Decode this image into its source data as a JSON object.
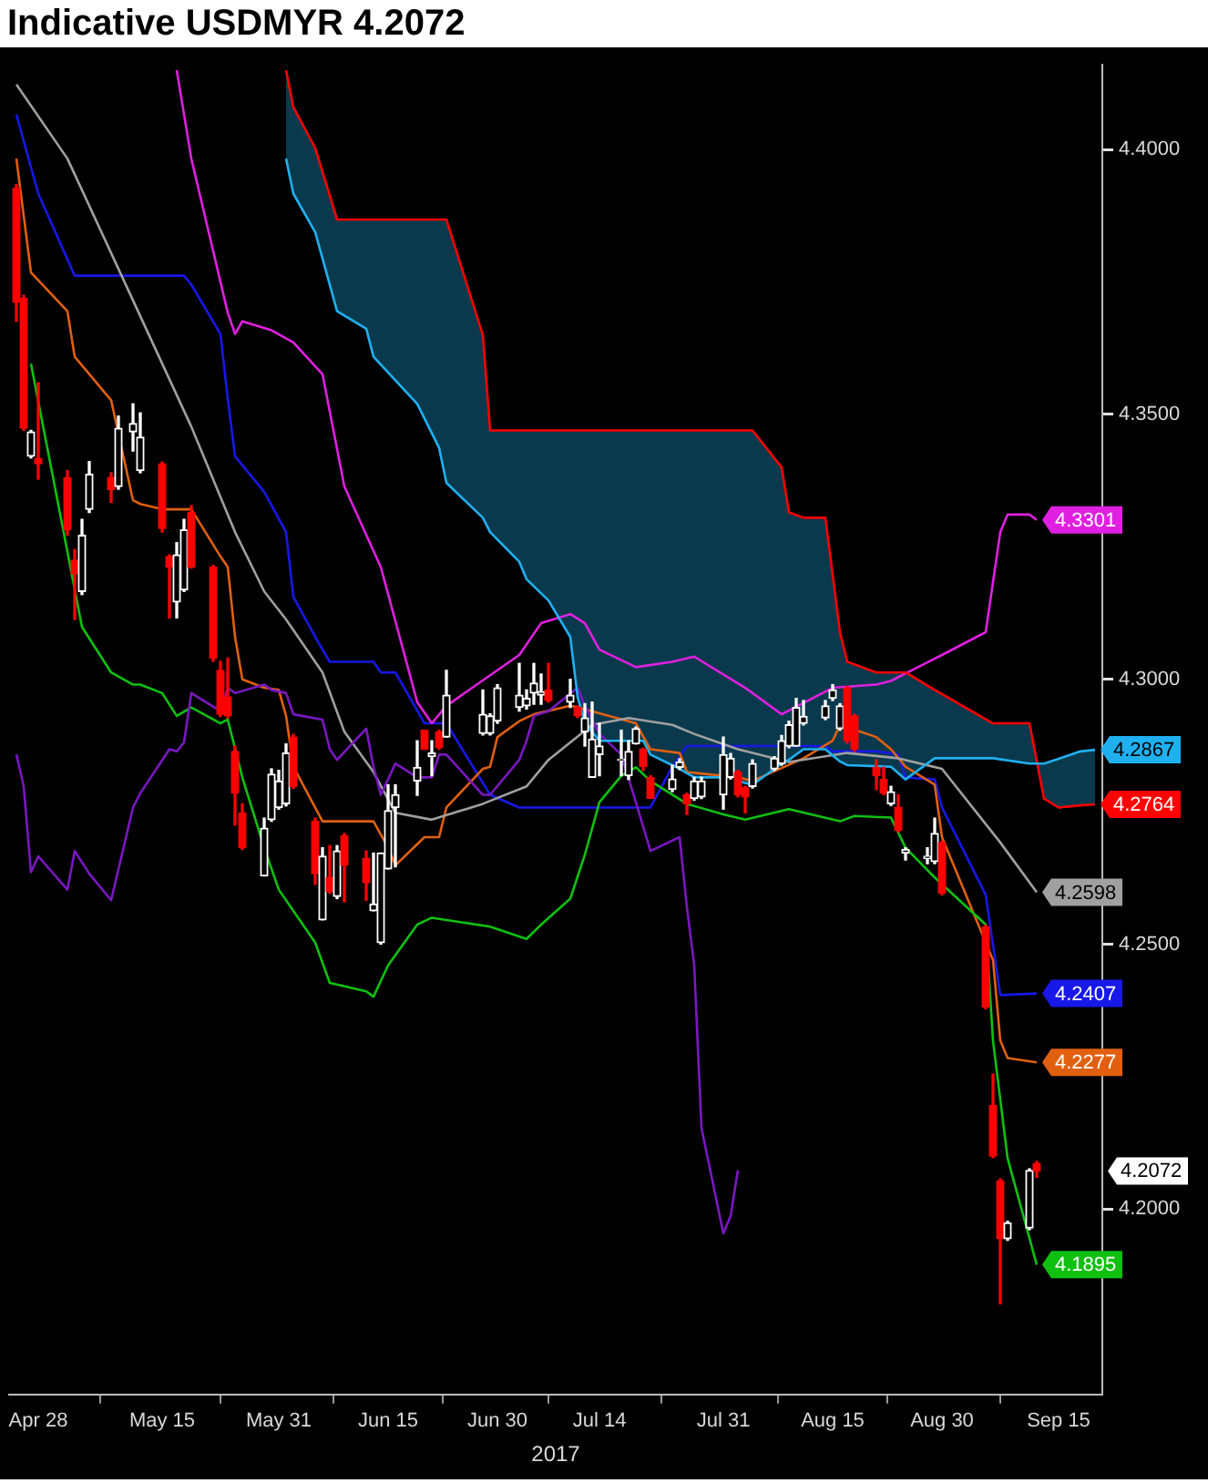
{
  "chart_data": {
    "type": "candlestick",
    "title": "Indicative USDMYR 4.2072",
    "xlabel": "2017",
    "x": [
      "2017-04-25",
      "2017-04-26",
      "2017-04-27",
      "2017-04-28",
      "2017-05-02",
      "2017-05-03",
      "2017-05-04",
      "2017-05-05",
      "2017-05-08",
      "2017-05-09",
      "2017-05-11",
      "2017-05-12",
      "2017-05-15",
      "2017-05-16",
      "2017-05-17",
      "2017-05-18",
      "2017-05-19",
      "2017-05-22",
      "2017-05-23",
      "2017-05-24",
      "2017-05-25",
      "2017-05-26",
      "2017-05-29",
      "2017-05-30",
      "2017-05-31",
      "2017-06-01",
      "2017-06-02",
      "2017-06-05",
      "2017-06-06",
      "2017-06-07",
      "2017-06-08",
      "2017-06-09",
      "2017-06-12",
      "2017-06-13",
      "2017-06-14",
      "2017-06-15",
      "2017-06-16",
      "2017-06-19",
      "2017-06-20",
      "2017-06-21",
      "2017-06-22",
      "2017-06-23",
      "2017-06-28",
      "2017-06-29",
      "2017-06-30",
      "2017-07-03",
      "2017-07-04",
      "2017-07-05",
      "2017-07-06",
      "2017-07-07",
      "2017-07-10",
      "2017-07-11",
      "2017-07-12",
      "2017-07-13",
      "2017-07-14",
      "2017-07-17",
      "2017-07-18",
      "2017-07-19",
      "2017-07-20",
      "2017-07-21",
      "2017-07-24",
      "2017-07-25",
      "2017-07-26",
      "2017-07-27",
      "2017-07-28",
      "2017-07-31",
      "2017-08-01",
      "2017-08-02",
      "2017-08-03",
      "2017-08-04",
      "2017-08-07",
      "2017-08-08",
      "2017-08-09",
      "2017-08-10",
      "2017-08-11",
      "2017-08-14",
      "2017-08-15",
      "2017-08-16",
      "2017-08-17",
      "2017-08-18",
      "2017-08-21",
      "2017-08-22",
      "2017-08-23",
      "2017-08-24",
      "2017-08-25",
      "2017-08-28",
      "2017-08-29",
      "2017-08-30",
      "2017-09-05",
      "2017-09-06",
      "2017-09-07",
      "2017-09-08",
      "2017-09-11",
      "2017-09-12"
    ],
    "ohlc": [
      [
        4.3927,
        4.3934,
        4.3676,
        4.3712
      ],
      [
        4.3719,
        4.3725,
        4.347,
        4.3474
      ],
      [
        4.3421,
        4.347,
        4.3418,
        4.3467
      ],
      [
        4.3417,
        4.356,
        4.3378,
        4.3407
      ],
      [
        4.3381,
        4.3394,
        4.3272,
        4.3282
      ],
      [
        4.3225,
        4.3245,
        4.3113,
        4.3199
      ],
      [
        4.3166,
        4.3302,
        4.316,
        4.3272
      ],
      [
        4.3321,
        4.3411,
        4.3315,
        4.3387
      ],
      [
        4.3381,
        4.339,
        4.3334,
        4.3358
      ],
      [
        4.3364,
        4.3497,
        4.3359,
        4.3474
      ],
      [
        4.3467,
        4.352,
        4.3431,
        4.3483
      ],
      [
        4.3394,
        4.3503,
        4.339,
        4.3457
      ],
      [
        4.3407,
        4.341,
        4.3278,
        4.3285
      ],
      [
        4.3232,
        4.3235,
        4.3116,
        4.3212
      ],
      [
        4.3146,
        4.3258,
        4.3116,
        4.3235
      ],
      [
        4.3169,
        4.3302,
        4.3166,
        4.3282
      ],
      [
        4.3315,
        4.3328,
        4.321,
        4.3212
      ],
      [
        4.3212,
        4.3215,
        4.3034,
        4.304
      ],
      [
        4.3017,
        4.3034,
        4.293,
        4.2934
      ],
      [
        4.2967,
        4.304,
        4.2927,
        4.2931
      ],
      [
        4.2864,
        4.2874,
        4.2725,
        4.2785
      ],
      [
        4.2748,
        4.2765,
        4.2679,
        4.2682
      ],
      [
        4.2629,
        4.2738,
        4.2629,
        4.2719
      ],
      [
        4.2735,
        4.2831,
        4.2732,
        4.2821
      ],
      [
        4.2758,
        4.2828,
        4.2755,
        4.2808
      ],
      [
        4.2765,
        4.2878,
        4.2761,
        4.2861
      ],
      [
        4.2891,
        4.2896,
        4.2794,
        4.2798
      ],
      [
        4.2732,
        4.2738,
        4.2613,
        4.2633
      ],
      [
        4.2546,
        4.2682,
        4.2546,
        4.2666
      ],
      [
        4.2626,
        4.2686,
        4.2596,
        4.2599
      ],
      [
        4.259,
        4.2686,
        4.2586,
        4.2676
      ],
      [
        4.2705,
        4.2709,
        4.258,
        4.2649
      ],
      [
        4.2662,
        4.2676,
        4.2583,
        4.2616
      ],
      [
        4.2563,
        4.2672,
        4.2563,
        4.2576
      ],
      [
        4.2503,
        4.2672,
        4.25,
        4.2672
      ],
      [
        4.2642,
        4.2801,
        4.2642,
        4.2752
      ],
      [
        4.2758,
        4.2801,
        4.2646,
        4.2782
      ],
      [
        4.2808,
        4.2884,
        4.2781,
        4.2834
      ],
      [
        4.2904,
        4.2904,
        4.2868,
        4.2868
      ],
      [
        4.2854,
        4.2884,
        4.2818,
        4.2861
      ],
      [
        4.2901,
        4.2904,
        4.2868,
        4.2871
      ],
      [
        4.2891,
        4.3017,
        4.2891,
        4.297
      ],
      [
        4.2898,
        4.298,
        4.2895,
        4.2934
      ],
      [
        4.2898,
        4.2935,
        4.2895,
        4.2931
      ],
      [
        4.2921,
        4.299,
        4.2917,
        4.2984
      ],
      [
        4.2947,
        4.303,
        4.294,
        4.297
      ],
      [
        4.295,
        4.298,
        4.2944,
        4.2964
      ],
      [
        4.2974,
        4.303,
        4.2953,
        4.2993
      ],
      [
        4.297,
        4.301,
        4.2953,
        4.2977
      ],
      [
        4.298,
        4.303,
        4.2957,
        4.296
      ],
      [
        4.2957,
        4.3,
        4.2947,
        4.297
      ],
      [
        4.2947,
        4.295,
        4.2928,
        4.2931
      ],
      [
        4.2901,
        4.2954,
        4.2874,
        4.2927
      ],
      [
        4.2815,
        4.2957,
        4.2815,
        4.2887
      ],
      [
        4.2858,
        4.2917,
        4.2818,
        4.2874
      ],
      [
        4.2847,
        4.2904,
        4.2818,
        4.2849
      ],
      [
        4.2818,
        4.2884,
        4.2811,
        4.2864
      ],
      [
        4.2878,
        4.291,
        4.2878,
        4.2907
      ],
      [
        4.2868,
        4.287,
        4.2828,
        4.2835
      ],
      [
        4.2815,
        4.2818,
        4.2775,
        4.2775
      ],
      [
        4.2792,
        4.2838,
        4.2788,
        4.2812
      ],
      [
        4.2834,
        4.285,
        4.283,
        4.2844
      ],
      [
        4.2782,
        4.2785,
        4.2745,
        4.2765
      ],
      [
        4.2775,
        4.2815,
        4.2772,
        4.2808
      ],
      [
        4.2778,
        4.2815,
        4.2775,
        4.2808
      ],
      [
        4.2782,
        4.2891,
        4.2755,
        4.2858
      ],
      [
        4.2815,
        4.286,
        4.2812,
        4.2851
      ],
      [
        4.2825,
        4.2828,
        4.2778,
        4.2782
      ],
      [
        4.2795,
        4.2798,
        4.2748,
        4.2778
      ],
      [
        4.2798,
        4.2848,
        4.2795,
        4.2841
      ],
      [
        4.2831,
        4.2854,
        4.2828,
        4.2851
      ],
      [
        4.2841,
        4.2894,
        4.2838,
        4.2884
      ],
      [
        4.2874,
        4.2921,
        4.2871,
        4.2914
      ],
      [
        4.2874,
        4.2964,
        4.2874,
        4.2947
      ],
      [
        4.2917,
        4.296,
        4.2914,
        4.293
      ],
      [
        4.2927,
        4.296,
        4.2924,
        4.295
      ],
      [
        4.2964,
        4.299,
        4.296,
        4.298
      ],
      [
        4.2907,
        4.2954,
        4.2904,
        4.295
      ],
      [
        4.2984,
        4.2987,
        4.288,
        4.2884
      ],
      [
        4.2931,
        4.2934,
        4.2864,
        4.2868
      ],
      [
        4.2834,
        4.2848,
        4.2792,
        4.2818
      ],
      [
        4.2811,
        4.2834,
        4.2782,
        4.2785
      ],
      [
        4.2765,
        4.2798,
        4.2762,
        4.2788
      ],
      [
        4.2758,
        4.2782,
        4.2712,
        4.2715
      ],
      [
        4.2672,
        4.2682,
        4.2659,
        4.2679
      ],
      [
        4.2662,
        4.2682,
        4.2652,
        4.2666
      ],
      [
        4.2656,
        4.2738,
        4.2652,
        4.2709
      ],
      [
        4.2692,
        4.2695,
        4.2593,
        4.2596
      ],
      [
        4.2533,
        4.2536,
        4.2378,
        4.2381
      ],
      [
        4.2196,
        4.2255,
        4.2097,
        4.21
      ],
      [
        4.2053,
        4.2057,
        4.1821,
        4.1944
      ],
      [
        4.1944,
        4.1977,
        4.1941,
        4.1974
      ],
      [
        4.1964,
        4.2076,
        4.1961,
        4.2073
      ],
      [
        4.2086,
        4.209,
        4.206,
        4.2072
      ]
    ],
    "colors": [
      "#ff0000",
      "#ff0000",
      "#ffffff",
      "#ff0000",
      "#ff0000",
      "#ff0000",
      "#ffffff",
      "#ffffff",
      "#ff0000",
      "#ffffff",
      "#ffffff",
      "#ffffff",
      "#ff0000",
      "#ff0000",
      "#ffffff",
      "#ffffff",
      "#ff0000",
      "#ff0000",
      "#ff0000",
      "#ff0000",
      "#ff0000",
      "#ff0000",
      "#ffffff",
      "#ffffff",
      "#ffffff",
      "#ffffff",
      "#ff0000",
      "#ff0000",
      "#ffffff",
      "#ff0000",
      "#ffffff",
      "#ff0000",
      "#ff0000",
      "#ffffff",
      "#ffffff",
      "#ffffff",
      "#ffffff",
      "#ffffff",
      "#ff0000",
      "#ffffff",
      "#ff0000",
      "#ffffff",
      "#ffffff",
      "#ffffff",
      "#ffffff",
      "#ffffff",
      "#ffffff",
      "#ffffff",
      "#ffffff",
      "#ff0000",
      "#ffffff",
      "#ff0000",
      "#ffffff",
      "#ffffff",
      "#ffffff",
      "#ffffff",
      "#ffffff",
      "#ffffff",
      "#ff0000",
      "#ff0000",
      "#ffffff",
      "#ffffff",
      "#ff0000",
      "#ffffff",
      "#ffffff",
      "#ffffff",
      "#ffffff",
      "#ff0000",
      "#ff0000",
      "#ffffff",
      "#ffffff",
      "#ffffff",
      "#ffffff",
      "#ffffff",
      "#ffffff",
      "#ffffff",
      "#ffffff",
      "#ffffff",
      "#ff0000",
      "#ff0000",
      "#ff0000",
      "#ff0000",
      "#ffffff",
      "#ff0000",
      "#ffffff",
      "#ffffff",
      "#ffffff",
      "#ff0000",
      "#ff0000",
      "#ff0000",
      "#ff0000",
      "#ffffff",
      "#ffffff",
      "#ff0000"
    ],
    "value_labels": [
      null,
      null,
      null,
      null,
      null,
      null,
      null,
      null,
      null,
      null,
      null,
      null,
      null,
      null,
      null,
      null,
      null,
      null,
      null,
      null,
      null,
      null,
      null,
      null,
      null,
      null,
      null,
      null,
      null,
      null,
      null,
      null,
      null,
      null,
      null,
      null,
      null,
      null,
      null,
      null,
      null,
      null,
      null,
      null,
      null,
      null,
      null,
      null,
      null,
      null,
      null,
      null,
      null,
      null,
      null,
      null,
      null,
      null,
      null,
      null,
      null,
      null,
      null,
      null,
      null,
      null,
      null,
      null,
      null,
      null,
      null,
      null,
      null,
      null,
      null,
      null,
      null,
      null,
      null,
      null,
      null,
      null,
      null,
      null,
      null,
      null,
      null,
      null,
      null,
      null,
      null,
      null,
      null,
      "4.2072"
    ],
    "series": [
      {
        "type": "line",
        "color": "#20b0f0",
        "x": [
          "2017-06-01",
          "2017-06-02",
          "2017-06-05",
          "2017-06-08",
          "2017-06-12",
          "2017-06-13",
          "2017-06-19",
          "2017-06-22",
          "2017-06-23",
          "2017-06-28",
          "2017-06-29",
          "2017-07-03",
          "2017-07-04",
          "2017-07-07",
          "2017-07-10",
          "2017-07-11",
          "2017-07-12",
          "2017-07-14",
          "2017-07-20",
          "2017-07-21",
          "2017-07-25",
          "2017-07-27",
          "2017-07-31",
          "2017-08-01",
          "2017-08-02",
          "2017-08-04",
          "2017-08-08",
          "2017-08-09",
          "2017-08-11",
          "2017-08-14",
          "2017-08-16",
          "2017-08-17",
          "2017-08-21",
          "2017-08-23",
          "2017-08-25",
          "2017-08-29",
          "2017-09-06",
          "2017-09-11",
          "2017-09-13",
          "2017-09-15",
          "2017-09-18",
          "2017-09-20"
        ],
        "values": [
          4.3983,
          4.3917,
          4.3844,
          4.3695,
          4.3662,
          4.3609,
          4.352,
          4.3437,
          4.3371,
          4.3305,
          4.3278,
          4.3222,
          4.3189,
          4.3149,
          4.308,
          4.2967,
          4.2917,
          4.2884,
          4.2884,
          4.2858,
          4.2831,
          4.2815,
          4.2815,
          4.2841,
          4.2808,
          4.2801,
          4.2841,
          4.2848,
          4.2868,
          4.2868,
          4.2845,
          4.2838,
          4.2836,
          4.2835,
          4.2811,
          4.2851,
          4.2851,
          4.2841,
          4.2841,
          4.285,
          4.2864,
          4.2867
        ],
        "lower": [
          4.3983,
          4.3917,
          4.3844,
          4.3695,
          4.3662,
          4.3609,
          4.352,
          4.3437,
          4.3371,
          4.3305,
          4.3278,
          4.3222,
          4.3189,
          4.3149,
          4.308,
          4.2967,
          4.2917,
          4.2884,
          4.2884,
          4.2858,
          4.2831,
          4.2815,
          4.2815,
          4.2841,
          4.2808,
          4.2801,
          4.2841,
          4.2848,
          4.2868,
          4.2868,
          4.2845,
          4.2838,
          4.2836,
          4.2835,
          4.2811,
          4.2851,
          4.2851,
          4.2841,
          4.2841,
          4.285,
          4.2864,
          4.2867
        ],
        "upper": [
          4.415,
          4.408,
          4.4003,
          4.3868,
          4.3868,
          4.3868,
          4.3868,
          4.3868,
          4.3868,
          4.365,
          4.347,
          4.347,
          4.347,
          4.347,
          4.347,
          4.347,
          4.347,
          4.347,
          4.347,
          4.347,
          4.347,
          4.347,
          4.347,
          4.347,
          4.347,
          4.347,
          4.34,
          4.3315,
          4.3305,
          4.3305,
          4.3089,
          4.3033,
          4.3013,
          4.3013,
          4.3013,
          4.298,
          4.2917,
          4.2917,
          4.2775,
          4.2758,
          4.2762,
          4.2764
        ],
        "value_labels": [
          null,
          null,
          null,
          null,
          null,
          null,
          null,
          null,
          null,
          null,
          null,
          null,
          null,
          null,
          null,
          null,
          null,
          null,
          null,
          null,
          null,
          null,
          null,
          null,
          null,
          null,
          null,
          null,
          null,
          null,
          null,
          null,
          null,
          null,
          null,
          null,
          null,
          null,
          null,
          null,
          null,
          "4.2867"
        ]
      },
      {
        "type": "line",
        "color": "#ff0000",
        "x": [
          "2017-06-01",
          "2017-06-02",
          "2017-06-05",
          "2017-06-08",
          "2017-06-12",
          "2017-06-13",
          "2017-06-19",
          "2017-06-22",
          "2017-06-23",
          "2017-06-28",
          "2017-06-29",
          "2017-07-03",
          "2017-07-04",
          "2017-07-07",
          "2017-07-10",
          "2017-07-11",
          "2017-07-12",
          "2017-07-14",
          "2017-07-20",
          "2017-07-21",
          "2017-07-25",
          "2017-07-27",
          "2017-07-31",
          "2017-08-01",
          "2017-08-02",
          "2017-08-04",
          "2017-08-08",
          "2017-08-09",
          "2017-08-11",
          "2017-08-14",
          "2017-08-16",
          "2017-08-17",
          "2017-08-21",
          "2017-08-23",
          "2017-08-25",
          "2017-08-29",
          "2017-09-06",
          "2017-09-11",
          "2017-09-13",
          "2017-09-15",
          "2017-09-18",
          "2017-09-20"
        ],
        "values": [
          4.415,
          4.408,
          4.4003,
          4.3868,
          4.3868,
          4.3868,
          4.3868,
          4.3868,
          4.3868,
          4.365,
          4.347,
          4.347,
          4.347,
          4.347,
          4.347,
          4.347,
          4.347,
          4.347,
          4.347,
          4.347,
          4.347,
          4.347,
          4.347,
          4.347,
          4.347,
          4.347,
          4.34,
          4.3315,
          4.3305,
          4.3305,
          4.3089,
          4.3033,
          4.3013,
          4.3013,
          4.3013,
          4.298,
          4.2917,
          4.2917,
          4.2775,
          4.2758,
          4.2762,
          4.2764
        ],
        "value_labels": [
          null,
          null,
          null,
          null,
          null,
          null,
          null,
          null,
          null,
          null,
          null,
          null,
          null,
          null,
          null,
          null,
          null,
          null,
          null,
          null,
          null,
          null,
          null,
          null,
          null,
          null,
          null,
          null,
          null,
          null,
          null,
          null,
          null,
          null,
          null,
          null,
          null,
          null,
          null,
          null,
          null,
          "4.2764"
        ]
      },
      {
        "type": "line",
        "color": "#7a18c0",
        "x": [
          "2017-04-25",
          "2017-04-26",
          "2017-04-27",
          "2017-04-28",
          "2017-05-02",
          "2017-05-03",
          "2017-05-05",
          "2017-05-08",
          "2017-05-11",
          "2017-05-12",
          "2017-05-16",
          "2017-05-17",
          "2017-05-18",
          "2017-05-19",
          "2017-05-23",
          "2017-05-24",
          "2017-05-25",
          "2017-05-29",
          "2017-05-30",
          "2017-06-01",
          "2017-06-02",
          "2017-06-06",
          "2017-06-07",
          "2017-06-08",
          "2017-06-12",
          "2017-06-13",
          "2017-06-14",
          "2017-06-16",
          "2017-06-19",
          "2017-06-21",
          "2017-06-22",
          "2017-06-23",
          "2017-06-28",
          "2017-06-29",
          "2017-07-03",
          "2017-07-04",
          "2017-07-05",
          "2017-07-07",
          "2017-07-11",
          "2017-07-12",
          "2017-07-14",
          "2017-07-17",
          "2017-07-19",
          "2017-07-21",
          "2017-07-25",
          "2017-07-26",
          "2017-07-27",
          "2017-07-28",
          "2017-07-31",
          "2017-08-01",
          "2017-08-02"
        ],
        "values": [
          4.2858,
          4.2798,
          4.2636,
          4.2666,
          4.2603,
          4.2676,
          4.2633,
          4.2583,
          4.2758,
          4.2785,
          4.2868,
          4.2864,
          4.2881,
          4.2974,
          4.294,
          4.2984,
          4.2974,
          4.299,
          4.298,
          4.2974,
          4.2934,
          4.2924,
          4.2868,
          4.2848,
          4.2907,
          4.2835,
          4.2782,
          4.2841,
          4.2815,
          4.2815,
          4.2858,
          4.2858,
          4.2782,
          4.2782,
          4.2848,
          4.2884,
          4.2931,
          4.294,
          4.2984,
          4.295,
          4.2897,
          4.2858,
          4.2768,
          4.2676,
          4.2702,
          4.257,
          4.2461,
          4.2153,
          4.1954,
          4.1987,
          4.2073
        ]
      },
      {
        "type": "line",
        "color": "#a0a0a0",
        "x": [
          "2017-04-25",
          "2017-05-02",
          "2017-05-09",
          "2017-05-19",
          "2017-05-25",
          "2017-05-29",
          "2017-06-01",
          "2017-06-06",
          "2017-06-09",
          "2017-06-13",
          "2017-06-16",
          "2017-06-21",
          "2017-06-28",
          "2017-07-04",
          "2017-07-07",
          "2017-07-13",
          "2017-07-18",
          "2017-07-24",
          "2017-07-27",
          "2017-08-02",
          "2017-08-09",
          "2017-08-17",
          "2017-08-24",
          "2017-08-30",
          "2017-09-07",
          "2017-09-12"
        ],
        "values": [
          4.4123,
          4.3983,
          4.3775,
          4.3477,
          4.3278,
          4.3166,
          4.3113,
          4.3013,
          4.2901,
          4.2825,
          4.2748,
          4.2735,
          4.2765,
          4.2798,
          4.2848,
          4.2914,
          4.2927,
          4.2914,
          4.2897,
          4.2868,
          4.2844,
          4.2861,
          4.2851,
          4.2831,
          4.2692,
          4.2598
        ],
        "value_labels": [
          null,
          null,
          null,
          null,
          null,
          null,
          null,
          null,
          null,
          null,
          null,
          null,
          null,
          null,
          null,
          null,
          null,
          null,
          null,
          null,
          null,
          null,
          null,
          null,
          null,
          "4.2598"
        ]
      },
      {
        "type": "line",
        "color": "#e020e0",
        "x": [
          "2017-05-17",
          "2017-05-19",
          "2017-05-24",
          "2017-05-25",
          "2017-05-26",
          "2017-05-30",
          "2017-06-02",
          "2017-06-06",
          "2017-06-09",
          "2017-06-14",
          "2017-06-19",
          "2017-06-21",
          "2017-06-23",
          "2017-07-03",
          "2017-07-06",
          "2017-07-10",
          "2017-07-12",
          "2017-07-14",
          "2017-07-19",
          "2017-07-24",
          "2017-07-27",
          "2017-08-03",
          "2017-08-08",
          "2017-08-15",
          "2017-08-21",
          "2017-08-23",
          "2017-08-30",
          "2017-09-05",
          "2017-09-07",
          "2017-09-08",
          "2017-09-11",
          "2017-09-12"
        ],
        "values": [
          4.415,
          4.3983,
          4.3692,
          4.3652,
          4.3676,
          4.3659,
          4.3636,
          4.3576,
          4.3364,
          4.3212,
          4.2957,
          4.2917,
          4.295,
          4.3046,
          4.3106,
          4.3123,
          4.3106,
          4.3056,
          4.3023,
          4.3033,
          4.3043,
          4.2984,
          4.2934,
          4.2984,
          4.299,
          4.2997,
          4.3046,
          4.3089,
          4.3278,
          4.3311,
          4.3311,
          4.3301
        ],
        "value_labels": [
          null,
          null,
          null,
          null,
          null,
          null,
          null,
          null,
          null,
          null,
          null,
          null,
          null,
          null,
          null,
          null,
          null,
          null,
          null,
          null,
          null,
          null,
          null,
          null,
          null,
          null,
          null,
          null,
          null,
          null,
          null,
          "4.3301"
        ]
      },
      {
        "type": "line",
        "color": "#10c010",
        "x": [
          "2017-04-27",
          "2017-05-04",
          "2017-05-08",
          "2017-05-11",
          "2017-05-12",
          "2017-05-15",
          "2017-05-17",
          "2017-05-19",
          "2017-05-23",
          "2017-05-24",
          "2017-05-26",
          "2017-05-29",
          "2017-05-31",
          "2017-06-05",
          "2017-06-07",
          "2017-06-12",
          "2017-06-13",
          "2017-06-15",
          "2017-06-19",
          "2017-06-21",
          "2017-06-29",
          "2017-07-04",
          "2017-07-06",
          "2017-07-10",
          "2017-07-12",
          "2017-07-14",
          "2017-07-17",
          "2017-07-19",
          "2017-07-21",
          "2017-07-26",
          "2017-07-31",
          "2017-08-03",
          "2017-08-09",
          "2017-08-16",
          "2017-08-18",
          "2017-08-23",
          "2017-08-25",
          "2017-08-29",
          "2017-09-05",
          "2017-09-06",
          "2017-09-08",
          "2017-09-12"
        ],
        "values": [
          4.3596,
          4.3099,
          4.3013,
          4.299,
          4.299,
          4.2974,
          4.2931,
          4.2947,
          4.2917,
          4.2924,
          4.2815,
          4.2682,
          4.2603,
          4.2503,
          4.2427,
          4.2411,
          4.2401,
          4.246,
          4.2537,
          4.255,
          4.2533,
          4.251,
          4.2537,
          4.2586,
          4.2669,
          4.2768,
          4.2818,
          4.2834,
          4.2808,
          4.2765,
          4.2745,
          4.2735,
          4.2755,
          4.2732,
          4.2742,
          4.2739,
          4.2682,
          4.2626,
          4.2537,
          4.2318,
          4.2096,
          4.1895
        ],
        "value_labels": [
          null,
          null,
          null,
          null,
          null,
          null,
          null,
          null,
          null,
          null,
          null,
          null,
          null,
          null,
          null,
          null,
          null,
          null,
          null,
          null,
          null,
          null,
          null,
          null,
          null,
          null,
          null,
          null,
          null,
          null,
          null,
          null,
          null,
          null,
          null,
          null,
          null,
          null,
          null,
          null,
          null,
          "4.1895"
        ]
      },
      {
        "type": "line",
        "color": "#e06010",
        "x": [
          "2017-04-25",
          "2017-04-27",
          "2017-05-02",
          "2017-05-03",
          "2017-05-08",
          "2017-05-11",
          "2017-05-12",
          "2017-05-15",
          "2017-05-19",
          "2017-05-23",
          "2017-05-24",
          "2017-05-25",
          "2017-05-26",
          "2017-05-29",
          "2017-05-31",
          "2017-06-01",
          "2017-06-02",
          "2017-06-06",
          "2017-06-13",
          "2017-06-15",
          "2017-06-16",
          "2017-06-20",
          "2017-06-22",
          "2017-06-23",
          "2017-06-28",
          "2017-06-29",
          "2017-06-30",
          "2017-07-03",
          "2017-07-05",
          "2017-07-10",
          "2017-07-11",
          "2017-07-19",
          "2017-07-21",
          "2017-07-25",
          "2017-07-26",
          "2017-08-02",
          "2017-08-04",
          "2017-08-11",
          "2017-08-15",
          "2017-08-16",
          "2017-08-21",
          "2017-08-23",
          "2017-08-25",
          "2017-08-29",
          "2017-08-30",
          "2017-09-06",
          "2017-09-07",
          "2017-09-08",
          "2017-09-12"
        ],
        "values": [
          4.3983,
          4.3768,
          4.3695,
          4.3609,
          4.3527,
          4.3338,
          4.3331,
          4.3321,
          4.3321,
          4.3232,
          4.3212,
          4.308,
          4.3,
          4.2984,
          4.298,
          4.2931,
          4.2835,
          4.2732,
          4.2732,
          4.2682,
          4.2649,
          4.2702,
          4.2702,
          4.2758,
          4.2831,
          4.2835,
          4.2891,
          4.2921,
          4.2934,
          4.295,
          4.2947,
          4.2917,
          4.2868,
          4.2861,
          4.2825,
          4.2815,
          4.2808,
          4.2851,
          4.2884,
          4.2914,
          4.2891,
          4.2868,
          4.2835,
          4.2801,
          4.2702,
          4.247,
          4.2318,
          4.2285,
          4.2277
        ],
        "value_labels": [
          null,
          null,
          null,
          null,
          null,
          null,
          null,
          null,
          null,
          null,
          null,
          null,
          null,
          null,
          null,
          null,
          null,
          null,
          null,
          null,
          null,
          null,
          null,
          null,
          null,
          null,
          null,
          null,
          null,
          null,
          null,
          null,
          null,
          null,
          null,
          null,
          null,
          null,
          null,
          null,
          null,
          null,
          null,
          null,
          null,
          null,
          null,
          null,
          "4.2277"
        ]
      },
      {
        "type": "line",
        "color": "#1818e8",
        "x": [
          "2017-04-25",
          "2017-04-28",
          "2017-05-03",
          "2017-05-18",
          "2017-05-19",
          "2017-05-23",
          "2017-05-24",
          "2017-05-25",
          "2017-05-29",
          "2017-06-01",
          "2017-06-02",
          "2017-06-05",
          "2017-06-07",
          "2017-06-13",
          "2017-06-14",
          "2017-06-16",
          "2017-06-20",
          "2017-06-23",
          "2017-06-29",
          "2017-07-03",
          "2017-07-21",
          "2017-07-24",
          "2017-07-26",
          "2017-08-14",
          "2017-08-15",
          "2017-08-21",
          "2017-08-24",
          "2017-08-25",
          "2017-08-29",
          "2017-08-30",
          "2017-09-05",
          "2017-09-07",
          "2017-09-12"
        ],
        "values": [
          4.4066,
          4.3917,
          4.3762,
          4.3762,
          4.3745,
          4.3652,
          4.353,
          4.3421,
          4.3354,
          4.3278,
          4.3156,
          4.308,
          4.3033,
          4.3033,
          4.3013,
          4.3013,
          4.2917,
          4.2917,
          4.2782,
          4.2758,
          4.2758,
          4.2835,
          4.2874,
          4.2874,
          4.2864,
          4.2864,
          4.2858,
          4.2815,
          4.2811,
          4.2758,
          4.2593,
          4.2404,
          4.2407
        ],
        "value_labels": [
          null,
          null,
          null,
          null,
          null,
          null,
          null,
          null,
          null,
          null,
          null,
          null,
          null,
          null,
          null,
          null,
          null,
          null,
          null,
          null,
          null,
          null,
          null,
          null,
          null,
          null,
          null,
          null,
          null,
          null,
          null,
          null,
          "4.2407"
        ]
      }
    ],
    "xlim": [
      "2017-04-24",
      "2017-09-21"
    ],
    "xticks": [
      {
        "value": "2017-04-28",
        "label": "Apr 28"
      },
      {
        "value": "2017-05-15",
        "label": "May 15"
      },
      {
        "value": "2017-05-31",
        "label": "May 31"
      },
      {
        "value": "2017-06-15",
        "label": "Jun 15"
      },
      {
        "value": "2017-06-30",
        "label": "Jun 30"
      },
      {
        "value": "2017-07-14",
        "label": "Jul 14"
      },
      {
        "value": "2017-07-31",
        "label": "Jul 31"
      },
      {
        "value": "2017-08-15",
        "label": "Aug 15"
      },
      {
        "value": "2017-08-30",
        "label": "Aug 30"
      },
      {
        "value": "2017-09-15",
        "label": "Sep 15"
      }
    ],
    "ylim": [
      4.165,
      4.416
    ],
    "yticks": [
      {
        "value": 4.2,
        "label": "4.2000"
      },
      {
        "value": 4.25,
        "label": "4.2500"
      },
      {
        "value": 4.3,
        "label": "4.3000"
      },
      {
        "value": 4.35,
        "label": "4.3500"
      },
      {
        "value": 4.4,
        "label": "4.4000"
      }
    ]
  }
}
